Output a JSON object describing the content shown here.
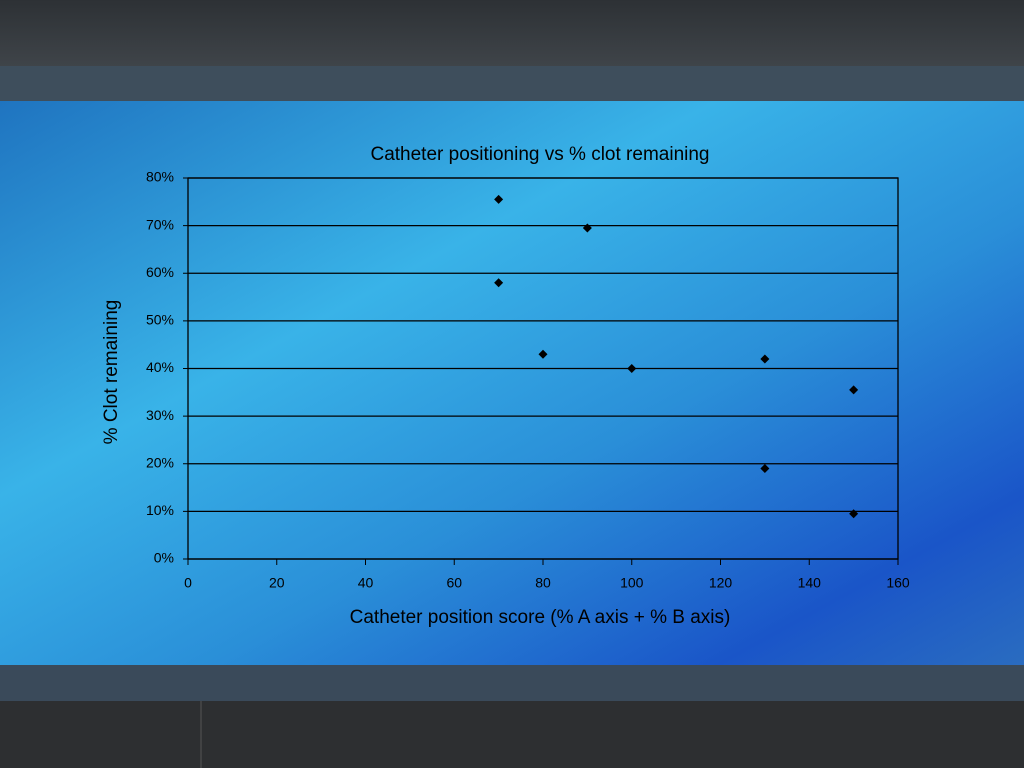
{
  "chart_data": {
    "type": "scatter",
    "title": "Catheter positioning vs % clot remaining",
    "x_label": "Catheter position score (% A axis + % B axis)",
    "y_label": "% Clot remaining",
    "x": [
      70,
      70,
      90,
      80,
      100,
      130,
      130,
      150,
      150
    ],
    "values": [
      75.5,
      58,
      69.5,
      43,
      40,
      42,
      19,
      35.5,
      9.5
    ],
    "color": "#000000",
    "marker": "diamond",
    "xlim": [
      0,
      160
    ],
    "xticks": [
      0,
      20,
      40,
      60,
      80,
      100,
      120,
      140,
      160
    ],
    "ylim": [
      0,
      80
    ],
    "yticks": [
      {
        "value": 0,
        "label": "0%"
      },
      {
        "value": 10,
        "label": "10%"
      },
      {
        "value": 20,
        "label": "20%"
      },
      {
        "value": 30,
        "label": "30%"
      },
      {
        "value": 40,
        "label": "40%"
      },
      {
        "value": 50,
        "label": "50%"
      },
      {
        "value": 60,
        "label": "60%"
      },
      {
        "value": 70,
        "label": "70%"
      },
      {
        "value": 80,
        "label": "80%"
      }
    ],
    "grid": true
  }
}
